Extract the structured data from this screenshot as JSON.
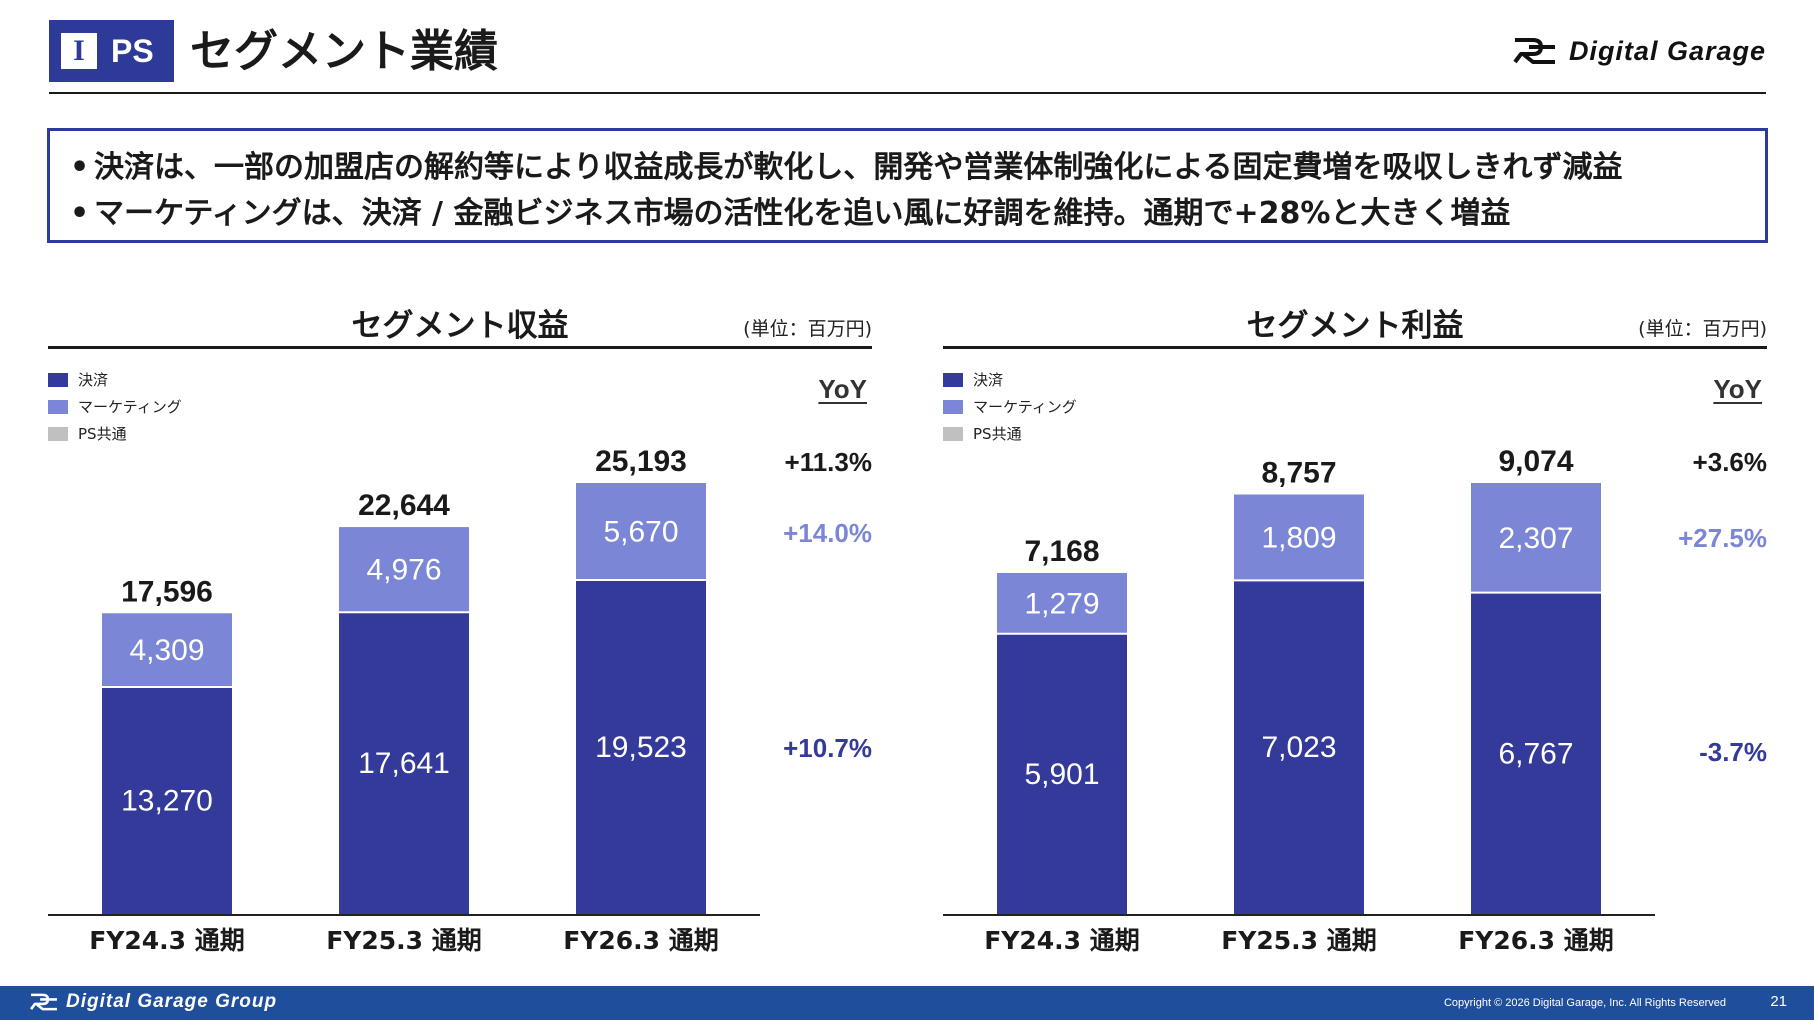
{
  "header": {
    "badge_letter": "I",
    "badge_label": "PS",
    "title": "セグメント業績",
    "logo_text": "Digital Garage"
  },
  "summary": [
    "決済は、一部の加盟店の解約等により収益成長が軟化し、開発や営業体制強化による固定費増を吸収しきれず減益",
    "マーケティングは、決済 / 金融ビジネス市場の活性化を追い風に好調を維持。通期で+28%と大きく増益"
  ],
  "summary_bullet": "•",
  "legend": [
    {
      "label": "決済",
      "color": "#343a9a"
    },
    {
      "label": "マーケティング",
      "color": "#7b87d6"
    },
    {
      "label": "PS共通",
      "color": "#c0c0c0"
    }
  ],
  "colors": {
    "payment": "#343a9a",
    "marketing": "#7b87d6",
    "ps_common": "#c0c0c0",
    "brand": "#2e3a97",
    "footer": "#1f4e9c"
  },
  "chart_data": [
    {
      "type": "bar",
      "stacked": true,
      "title": "セグメント収益",
      "unit": "(単位：百万円)",
      "categories": [
        "FY24.3 通期",
        "FY25.3 通期",
        "FY26.3 通期"
      ],
      "series": [
        {
          "name": "決済",
          "values": [
            13270,
            17641,
            19523
          ]
        },
        {
          "name": "マーケティング",
          "values": [
            4309,
            4976,
            5670
          ]
        },
        {
          "name": "PS共通",
          "values": [
            17,
            27,
            0
          ]
        }
      ],
      "totals": [
        "17,596",
        "22,644",
        "25,193"
      ],
      "labels": {
        "決済": [
          "13,270",
          "17,641",
          "19,523"
        ],
        "マーケティング": [
          "4,309",
          "4,976",
          "5,670"
        ]
      },
      "ylim": [
        0,
        25193
      ],
      "yoy_title": "YoY",
      "yoy": {
        "total": "+11.3%",
        "マーケティング": "+14.0%",
        "決済": "+10.7%"
      }
    },
    {
      "type": "bar",
      "stacked": true,
      "title": "セグメント利益",
      "unit": "(単位：百万円)",
      "categories": [
        "FY24.3 通期",
        "FY25.3 通期",
        "FY26.3 通期"
      ],
      "series": [
        {
          "name": "決済",
          "values": [
            5901,
            7023,
            6767
          ]
        },
        {
          "name": "マーケティング",
          "values": [
            1279,
            1809,
            2307
          ]
        },
        {
          "name": "PS共通",
          "values": [
            -12,
            -75,
            0
          ]
        }
      ],
      "totals": [
        "7,168",
        "8,757",
        "9,074"
      ],
      "labels": {
        "決済": [
          "5,901",
          "7,023",
          "6,767"
        ],
        "マーケティング": [
          "1,279",
          "1,809",
          "2,307"
        ]
      },
      "ylim": [
        0,
        9074
      ],
      "yoy_title": "YoY",
      "yoy": {
        "total": "+3.6%",
        "マーケティング": "+27.5%",
        "決済": "-3.7%"
      }
    }
  ],
  "footer": {
    "brand": "Digital Garage Group",
    "copyright": "Copyright © 2026 Digital Garage, Inc. All Rights Reserved",
    "page": "21"
  }
}
